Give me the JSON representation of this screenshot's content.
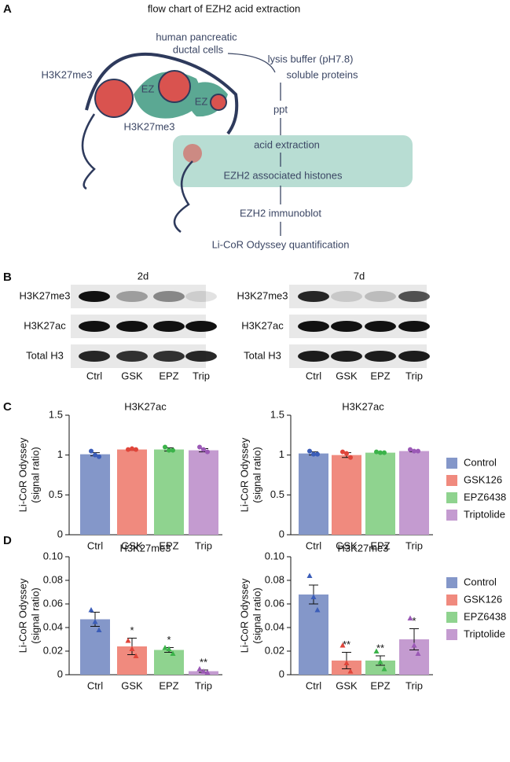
{
  "panel_labels": [
    "A",
    "B",
    "C",
    "D"
  ],
  "diagram": {
    "title": "flow chart of EZH2 acid extraction",
    "labels": [
      "human pancreatic",
      "ductal cells",
      "lysis buffer (pH7.8)",
      "soluble proteins",
      "H3K27me3",
      "EZ",
      "EZ",
      "H3K27me3",
      "ppt",
      "acid extraction",
      "EZH2 associated histones",
      "EZH2 immunoblot",
      "Li-CoR Odyssey quantification"
    ]
  },
  "blots": [
    {
      "time": "2d",
      "rows": [
        "H3K27me3",
        "H3K27ac",
        "Total H3"
      ],
      "lanes": [
        "Ctrl",
        "GSK",
        "EPZ",
        "Trip"
      ]
    },
    {
      "time": "7d",
      "rows": [
        "H3K27me3",
        "H3K27ac",
        "Total H3"
      ],
      "lanes": [
        "Ctrl",
        "GSK",
        "EPZ",
        "Trip"
      ]
    }
  ],
  "chart_data": [
    {
      "type": "bar",
      "title": "H3K27ac",
      "ylabel": [
        "Li-CoR Odyssey",
        "(signal ratio)"
      ],
      "categories": [
        "Ctrl",
        "GSK",
        "EPZ",
        "Trip"
      ],
      "values": [
        1.01,
        1.07,
        1.07,
        1.06
      ],
      "errors": [
        0.02,
        0.01,
        0.02,
        0.02
      ],
      "points": [
        [
          1.05,
          1.0,
          0.98
        ],
        [
          1.07,
          1.08,
          1.07
        ],
        [
          1.1,
          1.06,
          1.06
        ],
        [
          1.1,
          1.07,
          1.04
        ]
      ],
      "colors": [
        "#8497c9",
        "#f08a7e",
        "#8fd38f",
        "#c49bd0"
      ],
      "point_colors": [
        "#3b5db8",
        "#e0453a",
        "#3bb34a",
        "#9b59b6"
      ],
      "marker": "circle",
      "ylim": [
        0,
        1.5
      ],
      "yticks": [
        0,
        0.5,
        1,
        1.5
      ]
    },
    {
      "type": "bar",
      "title": "H3K27ac",
      "ylabel": [
        "Li-CoR Odyssey",
        "(signal ratio)"
      ],
      "categories": [
        "Ctrl",
        "GSK",
        "EPZ",
        "Trip"
      ],
      "values": [
        1.02,
        1.0,
        1.03,
        1.05
      ],
      "errors": [
        0.02,
        0.03,
        0.005,
        0.01
      ],
      "points": [
        [
          1.05,
          1.01,
          1.01
        ],
        [
          1.04,
          1.02,
          0.97
        ],
        [
          1.04,
          1.03,
          1.03
        ],
        [
          1.07,
          1.05,
          1.05
        ]
      ],
      "colors": [
        "#8497c9",
        "#f08a7e",
        "#8fd38f",
        "#c49bd0"
      ],
      "point_colors": [
        "#3b5db8",
        "#e0453a",
        "#3bb34a",
        "#9b59b6"
      ],
      "marker": "circle",
      "legend": [
        "Control",
        "GSK126",
        "EPZ6438",
        "Triptolide"
      ],
      "ylim": [
        0,
        1.5
      ],
      "yticks": [
        0,
        0.5,
        1,
        1.5
      ]
    },
    {
      "type": "bar",
      "title": "H3K27me3",
      "ylabel": [
        "Li-CoR Odyssey",
        "(signal ratio)"
      ],
      "categories": [
        "Ctrl",
        "GSK",
        "EPZ",
        "Trip"
      ],
      "values": [
        0.047,
        0.024,
        0.021,
        0.003
      ],
      "errors": [
        0.006,
        0.007,
        0.002,
        0.001
      ],
      "points": [
        [
          0.055,
          0.045,
          0.038
        ],
        [
          0.029,
          0.022,
          0.016
        ],
        [
          0.023,
          0.022,
          0.018
        ],
        [
          0.005,
          0.003,
          0.002
        ]
      ],
      "significance": [
        null,
        "*",
        "*",
        "**"
      ],
      "colors": [
        "#8497c9",
        "#f08a7e",
        "#8fd38f",
        "#c49bd0"
      ],
      "point_colors": [
        "#3b5db8",
        "#e0453a",
        "#3bb34a",
        "#9b59b6"
      ],
      "marker": "triangle",
      "ylim": [
        0,
        0.1
      ],
      "yticks": [
        0,
        0.02,
        0.04,
        0.06,
        0.08,
        {
          "value": 0.1,
          "label": "0.10"
        }
      ]
    },
    {
      "type": "bar",
      "title": "H3K27me3",
      "ylabel": [
        "Li-CoR Odyssey",
        "(signal ratio)"
      ],
      "categories": [
        "Ctrl",
        "GSK",
        "EPZ",
        "Trip"
      ],
      "values": [
        0.068,
        0.012,
        0.012,
        0.03
      ],
      "errors": [
        0.008,
        0.007,
        0.004,
        0.009
      ],
      "points": [
        [
          0.084,
          0.066,
          0.055
        ],
        [
          0.025,
          0.01,
          0.003
        ],
        [
          0.02,
          0.011,
          0.005
        ],
        [
          0.048,
          0.025,
          0.018
        ]
      ],
      "significance": [
        null,
        "**",
        "**",
        "*"
      ],
      "colors": [
        "#8497c9",
        "#f08a7e",
        "#8fd38f",
        "#c49bd0"
      ],
      "point_colors": [
        "#3b5db8",
        "#e0453a",
        "#3bb34a",
        "#9b59b6"
      ],
      "marker": "triangle",
      "legend": [
        "Control",
        "GSK126",
        "EPZ6438",
        "Triptolide"
      ],
      "ylim": [
        0,
        0.1
      ],
      "yticks": [
        0,
        0.02,
        0.04,
        0.06,
        0.08,
        {
          "value": 0.1,
          "label": "0.10"
        }
      ]
    }
  ]
}
